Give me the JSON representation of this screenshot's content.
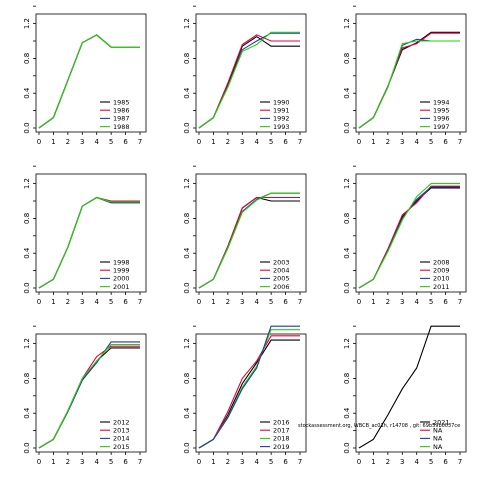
{
  "colors": {
    "black": "#000000",
    "red": "#e8003c",
    "blue": "#1f3aa8",
    "green": "#22d400"
  },
  "annotation": "stockassessment.org, WBCB_ac01h, r14708 , git: 69b59b0037ce",
  "chart_data": [
    {
      "type": "line",
      "xlim": [
        0,
        7
      ],
      "ylim": [
        0,
        1.4
      ],
      "xticks": [
        "0",
        "1",
        "2",
        "3",
        "4",
        "5",
        "6",
        "7"
      ],
      "yticks": [
        "0.0",
        "0.4",
        "0.8",
        "1.2"
      ],
      "legend_position": "bottom-right",
      "series": [
        {
          "name": "1985",
          "color": "black",
          "values": [
            0,
            0.12,
            0.55,
            0.98,
            1.07,
            0.93,
            0.93,
            0.93
          ]
        },
        {
          "name": "1986",
          "color": "red",
          "values": [
            0,
            0.12,
            0.55,
            0.98,
            1.07,
            0.93,
            0.93,
            0.93
          ]
        },
        {
          "name": "1987",
          "color": "blue",
          "values": [
            0,
            0.12,
            0.55,
            0.98,
            1.07,
            0.93,
            0.93,
            0.93
          ]
        },
        {
          "name": "1988",
          "color": "green",
          "values": [
            0,
            0.12,
            0.55,
            0.98,
            1.07,
            0.93,
            0.93,
            0.93
          ]
        }
      ]
    },
    {
      "type": "line",
      "xlim": [
        0,
        7
      ],
      "ylim": [
        0,
        1.4
      ],
      "xticks": [
        "0",
        "1",
        "2",
        "3",
        "4",
        "5",
        "6",
        "7"
      ],
      "yticks": [
        "0.0",
        "0.4",
        "0.8",
        "1.2"
      ],
      "legend_position": "bottom-right",
      "series": [
        {
          "name": "1990",
          "color": "black",
          "values": [
            0,
            0.12,
            0.5,
            0.94,
            1.05,
            0.94,
            0.94,
            0.94
          ]
        },
        {
          "name": "1991",
          "color": "red",
          "values": [
            0,
            0.12,
            0.52,
            0.96,
            1.07,
            1.0,
            1.0,
            1.0
          ]
        },
        {
          "name": "1992",
          "color": "blue",
          "values": [
            0,
            0.12,
            0.48,
            0.9,
            1.0,
            1.09,
            1.09,
            1.09
          ]
        },
        {
          "name": "1993",
          "color": "green",
          "values": [
            0,
            0.12,
            0.47,
            0.88,
            0.96,
            1.1,
            1.1,
            1.1
          ]
        }
      ]
    },
    {
      "type": "line",
      "xlim": [
        0,
        7
      ],
      "ylim": [
        0,
        1.4
      ],
      "xticks": [
        "0",
        "1",
        "2",
        "3",
        "4",
        "5",
        "6",
        "7"
      ],
      "yticks": [
        "0.0",
        "0.4",
        "0.8",
        "1.2"
      ],
      "legend_position": "bottom-right",
      "series": [
        {
          "name": "1994",
          "color": "black",
          "values": [
            0,
            0.12,
            0.48,
            0.9,
            0.98,
            1.1,
            1.1,
            1.1
          ]
        },
        {
          "name": "1995",
          "color": "red",
          "values": [
            0,
            0.12,
            0.48,
            0.92,
            0.97,
            1.09,
            1.09,
            1.09
          ]
        },
        {
          "name": "1996",
          "color": "blue",
          "values": [
            0,
            0.12,
            0.47,
            0.95,
            1.02,
            1.0,
            1.0,
            1.0
          ]
        },
        {
          "name": "1997",
          "color": "green",
          "values": [
            0,
            0.12,
            0.47,
            0.97,
            1.0,
            1.0,
            1.0,
            1.0
          ]
        }
      ]
    },
    {
      "type": "line",
      "xlim": [
        0,
        7
      ],
      "ylim": [
        0,
        1.4
      ],
      "xticks": [
        "0",
        "1",
        "2",
        "3",
        "4",
        "5",
        "6",
        "7"
      ],
      "yticks": [
        "0.0",
        "0.4",
        "0.8",
        "1.2"
      ],
      "legend_position": "bottom-right",
      "series": [
        {
          "name": "1998",
          "color": "black",
          "values": [
            0,
            0.1,
            0.47,
            0.94,
            1.04,
            0.98,
            0.98,
            0.98
          ]
        },
        {
          "name": "1999",
          "color": "red",
          "values": [
            0,
            0.1,
            0.47,
            0.94,
            1.04,
            1.0,
            1.0,
            1.0
          ]
        },
        {
          "name": "2000",
          "color": "blue",
          "values": [
            0,
            0.1,
            0.47,
            0.94,
            1.04,
            0.98,
            0.98,
            0.98
          ]
        },
        {
          "name": "2001",
          "color": "green",
          "values": [
            0,
            0.1,
            0.47,
            0.94,
            1.04,
            0.99,
            0.99,
            0.99
          ]
        }
      ]
    },
    {
      "type": "line",
      "xlim": [
        0,
        7
      ],
      "ylim": [
        0,
        1.4
      ],
      "xticks": [
        "0",
        "1",
        "2",
        "3",
        "4",
        "5",
        "6",
        "7"
      ],
      "yticks": [
        "0.0",
        "0.4",
        "0.8",
        "1.2"
      ],
      "legend_position": "bottom-right",
      "series": [
        {
          "name": "2003",
          "color": "black",
          "values": [
            0,
            0.1,
            0.48,
            0.92,
            1.04,
            1.0,
            1.0,
            1.0
          ]
        },
        {
          "name": "2004",
          "color": "red",
          "values": [
            0,
            0.1,
            0.48,
            0.92,
            1.04,
            1.04,
            1.04,
            1.04
          ]
        },
        {
          "name": "2005",
          "color": "blue",
          "values": [
            0,
            0.1,
            0.46,
            0.88,
            1.02,
            1.09,
            1.09,
            1.09
          ]
        },
        {
          "name": "2006",
          "color": "green",
          "values": [
            0,
            0.1,
            0.46,
            0.87,
            1.01,
            1.09,
            1.09,
            1.09
          ]
        }
      ]
    },
    {
      "type": "line",
      "xlim": [
        0,
        7
      ],
      "ylim": [
        0,
        1.4
      ],
      "xticks": [
        "0",
        "1",
        "2",
        "3",
        "4",
        "5",
        "6",
        "7"
      ],
      "yticks": [
        "0.0",
        "0.4",
        "0.8",
        "1.2"
      ],
      "legend_position": "bottom-right",
      "series": [
        {
          "name": "2008",
          "color": "black",
          "values": [
            0,
            0.1,
            0.44,
            0.82,
            1.0,
            1.15,
            1.15,
            1.15
          ]
        },
        {
          "name": "2009",
          "color": "red",
          "values": [
            0,
            0.1,
            0.45,
            0.84,
            0.98,
            1.17,
            1.17,
            1.17
          ]
        },
        {
          "name": "2010",
          "color": "blue",
          "values": [
            0,
            0.1,
            0.43,
            0.8,
            1.02,
            1.16,
            1.16,
            1.16
          ]
        },
        {
          "name": "2011",
          "color": "green",
          "values": [
            0,
            0.1,
            0.42,
            0.78,
            1.05,
            1.2,
            1.2,
            1.2
          ]
        }
      ]
    },
    {
      "type": "line",
      "xlim": [
        0,
        7
      ],
      "ylim": [
        0,
        1.4
      ],
      "xticks": [
        "0",
        "1",
        "2",
        "3",
        "4",
        "5",
        "6",
        "7"
      ],
      "yticks": [
        "0.0",
        "0.4",
        "0.8",
        "1.2"
      ],
      "legend_position": "bottom-right",
      "series": [
        {
          "name": "2012",
          "color": "black",
          "values": [
            0,
            0.1,
            0.42,
            0.78,
            1.0,
            1.15,
            1.15,
            1.15
          ]
        },
        {
          "name": "2013",
          "color": "red",
          "values": [
            0,
            0.1,
            0.43,
            0.8,
            1.05,
            1.17,
            1.17,
            1.17
          ]
        },
        {
          "name": "2014",
          "color": "blue",
          "values": [
            0,
            0.1,
            0.42,
            0.78,
            0.98,
            1.22,
            1.22,
            1.22
          ]
        },
        {
          "name": "2015",
          "color": "green",
          "values": [
            0,
            0.1,
            0.43,
            0.8,
            1.0,
            1.19,
            1.19,
            1.19
          ]
        }
      ]
    },
    {
      "type": "line",
      "xlim": [
        0,
        7
      ],
      "ylim": [
        0,
        1.4
      ],
      "xticks": [
        "0",
        "1",
        "2",
        "3",
        "4",
        "5",
        "6",
        "7"
      ],
      "yticks": [
        "0.0",
        "0.4",
        "0.8",
        "1.2"
      ],
      "legend_position": "bottom-right",
      "series": [
        {
          "name": "2016",
          "color": "black",
          "values": [
            0,
            0.1,
            0.38,
            0.74,
            0.98,
            1.24,
            1.24,
            1.24
          ]
        },
        {
          "name": "2017",
          "color": "red",
          "values": [
            0,
            0.1,
            0.42,
            0.8,
            1.0,
            1.29,
            1.29,
            1.29
          ]
        },
        {
          "name": "2018",
          "color": "green",
          "values": [
            0,
            0.1,
            0.36,
            0.7,
            0.94,
            1.36,
            1.36,
            1.36
          ]
        },
        {
          "name": "2019",
          "color": "blue",
          "values": [
            0,
            0.1,
            0.35,
            0.68,
            0.92,
            1.4,
            1.4,
            1.4
          ]
        }
      ]
    },
    {
      "type": "line",
      "xlim": [
        0,
        7
      ],
      "ylim": [
        0,
        1.4
      ],
      "xticks": [
        "0",
        "1",
        "2",
        "3",
        "4",
        "5",
        "6",
        "7"
      ],
      "yticks": [
        "0.0",
        "0.4",
        "0.8",
        "1.2"
      ],
      "legend_position": "bottom-right",
      "series": [
        {
          "name": "2021",
          "color": "black",
          "values": [
            0,
            0.1,
            0.38,
            0.68,
            0.92,
            1.4,
            1.4,
            1.4
          ]
        },
        {
          "name": "NA",
          "color": "red",
          "values": []
        },
        {
          "name": "NA",
          "color": "blue",
          "values": []
        },
        {
          "name": "NA",
          "color": "green",
          "values": []
        }
      ]
    }
  ]
}
